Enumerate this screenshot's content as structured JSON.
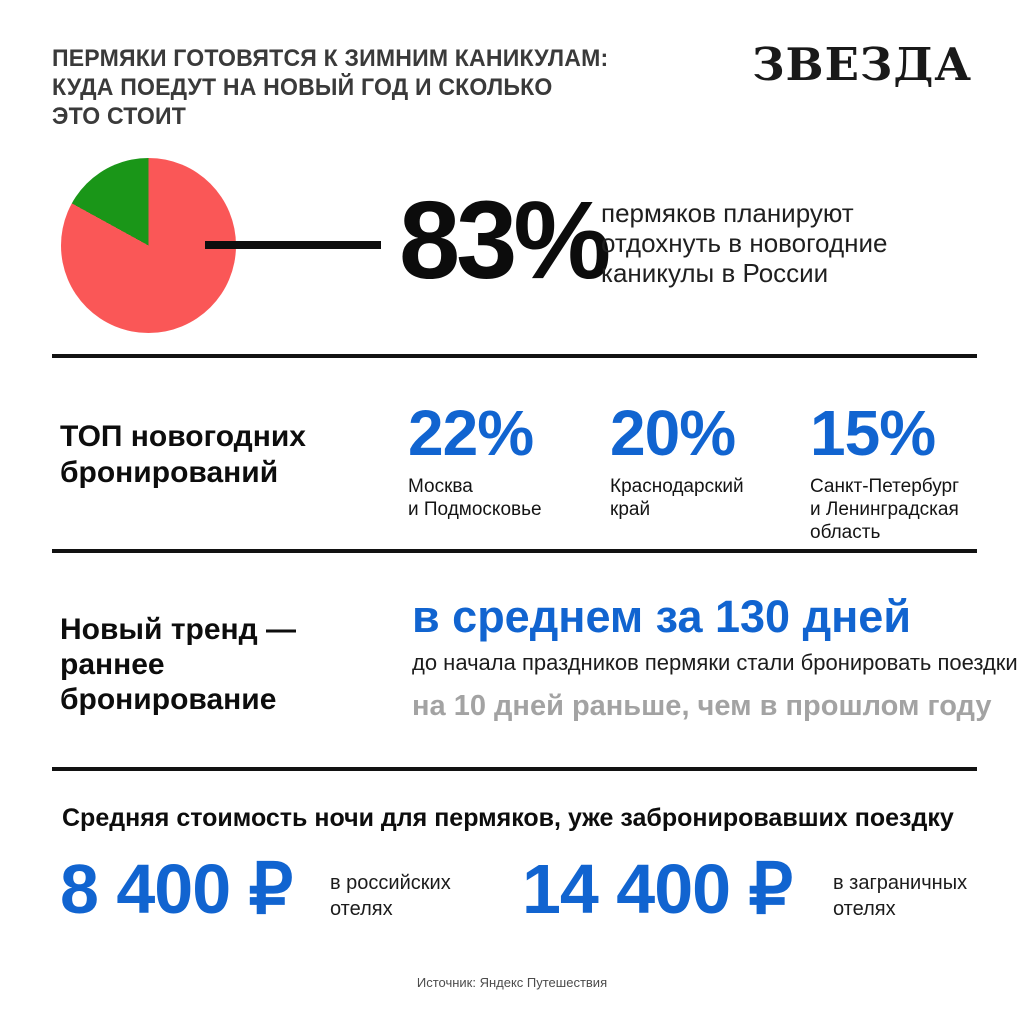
{
  "header": {
    "title_lines": [
      "ПЕРМЯКИ ГОТОВЯТСЯ К ЗИМНИМ КАНИКУЛАМ:",
      "КУДА ПОЕДУТ НА НОВЫЙ ГОД И СКОЛЬКО",
      "ЭТО СТОИТ"
    ],
    "logo": "ЗВЕЗДА"
  },
  "chart_data": {
    "type": "pie",
    "slices": [
      {
        "label": "пермяков планируют отдохнуть в новогодние каникулы в России",
        "value": 83,
        "color": "#fa5757"
      },
      {
        "label": "",
        "value": 17,
        "color": "#1a9618"
      }
    ],
    "annotation": "83%",
    "legend_position": "none"
  },
  "hero": {
    "value": "83%",
    "desc_lines": [
      "пермяков планируют",
      "отдохнуть в новогодние",
      "каникулы в России"
    ]
  },
  "bookings": {
    "heading_lines": [
      "ТОП новогодних",
      "бронирований"
    ],
    "items": [
      {
        "value": "22%",
        "label_lines": [
          "Москва",
          "и Подмосковье",
          ""
        ]
      },
      {
        "value": "20%",
        "label_lines": [
          "Краснодарский",
          "край",
          ""
        ]
      },
      {
        "value": "15%",
        "label_lines": [
          "Санкт-Петербург",
          "и Ленинградская",
          "область"
        ]
      }
    ]
  },
  "trend": {
    "heading_lines": [
      "Новый тренд —",
      "раннее",
      "бронирование"
    ],
    "highlight": "в среднем за 130 дней",
    "subtext": "до начала праздников пермяки стали бронировать поездки",
    "note": "на 10 дней раньше, чем в прошлом году"
  },
  "prices": {
    "heading": "Средняя стоимость ночи для пермяков, уже забронировавших поездку",
    "items": [
      {
        "value": "8 400 ₽",
        "label_lines": [
          "в российских",
          "отелях"
        ]
      },
      {
        "value": "14 400 ₽",
        "label_lines": [
          "в заграничных",
          "отелях"
        ]
      }
    ]
  },
  "footer": {
    "source": "Источник: Яндекс Путешествия"
  },
  "colors": {
    "accent_blue": "#1164d0",
    "pie_red": "#fa5757",
    "pie_green": "#1a9618",
    "muted_gray": "#a3a3a3",
    "title_gray": "#3a3a3a"
  }
}
